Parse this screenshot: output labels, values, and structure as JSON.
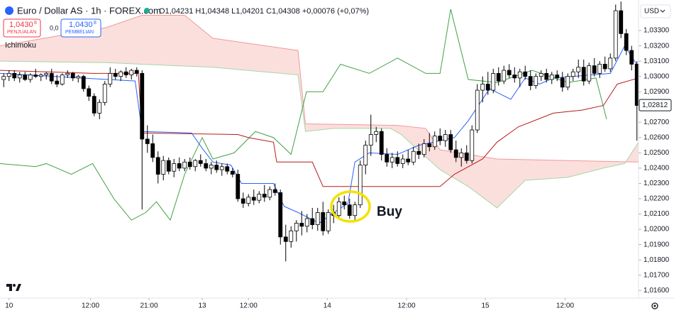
{
  "header": {
    "symbol": "Euro / Dollar AS · 1h · FOREX.com",
    "ohlc": "O1,04231 H1,04348 L1,04201 C1,04308 +0,00076 (+0,07%)",
    "sell": {
      "price": "1,0430",
      "pip": "8",
      "label": "PENJUALAN"
    },
    "spread": "0,0",
    "buy": {
      "price": "1,0430",
      "pip": "8",
      "label": "PEMBELIAN"
    },
    "indicator": "Ichimoku",
    "currency": "USD"
  },
  "chart_data": {
    "type": "candlestick",
    "up_color": "#ffffff",
    "down_color": "#000000",
    "wick_color": "#000000",
    "xlim": [
      -0.7,
      119.3
    ],
    "ylim": [
      1.0155,
      1.035
    ],
    "xticks": [
      {
        "value": 1,
        "label": "10"
      },
      {
        "value": 16.3,
        "label": "12:00"
      },
      {
        "value": 27.3,
        "label": "21:00"
      },
      {
        "value": 37.3,
        "label": "13"
      },
      {
        "value": 46,
        "label": "12:00"
      },
      {
        "value": 60.8,
        "label": "14"
      },
      {
        "value": 75.7,
        "label": "12:00"
      },
      {
        "value": 90.5,
        "label": "15"
      },
      {
        "value": 105.5,
        "label": "12:00"
      }
    ],
    "yticks": [
      {
        "value": 1.016,
        "label": "1,01600"
      },
      {
        "value": 1.017,
        "label": "1,01700"
      },
      {
        "value": 1.018,
        "label": "1,01800"
      },
      {
        "value": 1.019,
        "label": "1,01900"
      },
      {
        "value": 1.02,
        "label": "1,02000"
      },
      {
        "value": 1.021,
        "label": "1,02100"
      },
      {
        "value": 1.022,
        "label": "1,02200"
      },
      {
        "value": 1.023,
        "label": "1,02300"
      },
      {
        "value": 1.024,
        "label": "1,02400"
      },
      {
        "value": 1.025,
        "label": "1,02500"
      },
      {
        "value": 1.026,
        "label": "1,02600"
      },
      {
        "value": 1.027,
        "label": "1,02700"
      },
      {
        "value": 1.029,
        "label": "1,02900"
      },
      {
        "value": 1.03,
        "label": "1,03000"
      },
      {
        "value": 1.031,
        "label": "1,03100"
      },
      {
        "value": 1.032,
        "label": "1,03200"
      },
      {
        "value": 1.033,
        "label": "1,03300"
      }
    ],
    "grid": false,
    "last_price": {
      "value": 1.02812,
      "label": "1,02812"
    },
    "annotation": "Buy",
    "open": [
      1.0298,
      1.03,
      1.0302,
      1.0299,
      1.0301,
      1.0298,
      1.0301,
      1.03,
      1.0301,
      1.0302,
      1.0297,
      1.0295,
      1.0301,
      1.0302,
      1.0299,
      1.03,
      1.0292,
      1.0287,
      1.0276,
      1.0283,
      1.0295,
      1.0302,
      1.03,
      1.0303,
      1.0301,
      1.0304,
      1.0302,
      1.0259,
      1.0256,
      1.0247,
      1.0236,
      1.0245,
      1.0238,
      1.0243,
      1.024,
      1.0244,
      1.0241,
      1.0245,
      1.0243,
      1.024,
      1.0242,
      1.0239,
      1.0241,
      1.0238,
      1.0236,
      1.022,
      1.0217,
      1.0221,
      1.0219,
      1.0223,
      1.0221,
      1.0226,
      1.0224,
      1.0195,
      1.0192,
      1.0199,
      1.0204,
      1.0202,
      1.0207,
      1.0203,
      1.0211,
      1.0199,
      1.0211,
      1.0209,
      1.0218,
      1.0216,
      1.0209,
      1.0216,
      1.0242,
      1.0255,
      1.0262,
      1.0264,
      1.0249,
      1.0244,
      1.0247,
      1.0243,
      1.0246,
      1.0244,
      1.0251,
      1.0249,
      1.0256,
      1.0254,
      1.0261,
      1.0258,
      1.0262,
      1.0252,
      1.0247,
      1.025,
      1.0245,
      1.0265,
      1.0291,
      1.0295,
      1.0291,
      1.0302,
      1.0297,
      1.0304,
      1.0301,
      1.0299,
      1.0303,
      1.03,
      1.0294,
      1.03,
      1.0302,
      1.0298,
      1.0301,
      1.0299,
      1.0293,
      1.03,
      1.0303,
      1.0306,
      1.0297,
      1.0307,
      1.0302,
      1.0308,
      1.0305,
      1.0312,
      1.0343,
      1.0328,
      1.0317,
      1.0308
    ],
    "high": [
      1.0302,
      1.0304,
      1.0304,
      1.0303,
      1.0303,
      1.0302,
      1.0305,
      1.0302,
      1.0303,
      1.0305,
      1.0301,
      1.0302,
      1.0304,
      1.0303,
      1.0301,
      1.0301,
      1.0294,
      1.0289,
      1.0285,
      1.0297,
      1.0306,
      1.0305,
      1.0304,
      1.0306,
      1.0305,
      1.0306,
      1.0304,
      1.0268,
      1.0262,
      1.0251,
      1.0248,
      1.0247,
      1.0246,
      1.0247,
      1.0246,
      1.0247,
      1.0246,
      1.0249,
      1.0246,
      1.0244,
      1.0245,
      1.0243,
      1.0243,
      1.024,
      1.0239,
      1.0224,
      1.0223,
      1.0226,
      1.0225,
      1.0229,
      1.0228,
      1.023,
      1.0226,
      1.0203,
      1.0202,
      1.0206,
      1.0212,
      1.021,
      1.0214,
      1.0214,
      1.0218,
      1.0213,
      1.0216,
      1.0221,
      1.0222,
      1.022,
      1.0218,
      1.0245,
      1.0258,
      1.0275,
      1.0267,
      1.0266,
      1.0253,
      1.025,
      1.0251,
      1.0249,
      1.0252,
      1.0254,
      1.0256,
      1.0259,
      1.0263,
      1.0264,
      1.0266,
      1.0265,
      1.0265,
      1.0258,
      1.0253,
      1.0255,
      1.0268,
      1.0295,
      1.03,
      1.0303,
      1.0305,
      1.0306,
      1.0307,
      1.0308,
      1.0306,
      1.0305,
      1.0307,
      1.0304,
      1.0302,
      1.0304,
      1.0305,
      1.0303,
      1.0304,
      1.0303,
      1.0302,
      1.0305,
      1.0311,
      1.0311,
      1.0309,
      1.0312,
      1.031,
      1.0313,
      1.0315,
      1.0347,
      1.0349,
      1.0331,
      1.032,
      1.031
    ],
    "low": [
      1.0293,
      1.0297,
      1.0297,
      1.0296,
      1.0297,
      1.0296,
      1.0299,
      1.0297,
      1.0298,
      1.0295,
      1.0293,
      1.0294,
      1.0299,
      1.0297,
      1.0296,
      1.029,
      1.0284,
      1.0274,
      1.0272,
      1.0281,
      1.0293,
      1.0298,
      1.0297,
      1.0299,
      1.0298,
      1.03,
      1.0213,
      1.025,
      1.0244,
      1.023,
      1.0232,
      1.0236,
      1.0234,
      1.0238,
      1.0238,
      1.0239,
      1.0238,
      1.0241,
      1.0238,
      1.0236,
      1.0237,
      1.0235,
      1.0236,
      1.0234,
      1.0218,
      1.0214,
      1.0215,
      1.0216,
      1.0217,
      1.0218,
      1.0219,
      1.0222,
      1.019,
      1.0179,
      1.0188,
      1.0192,
      1.0196,
      1.0198,
      1.02,
      1.0199,
      1.0196,
      1.0197,
      1.0204,
      1.0207,
      1.0213,
      1.0207,
      1.0206,
      1.0214,
      1.0236,
      1.0248,
      1.0257,
      1.0245,
      1.0241,
      1.024,
      1.0241,
      1.024,
      1.0242,
      1.0242,
      1.0246,
      1.0247,
      1.0251,
      1.0252,
      1.0255,
      1.0254,
      1.025,
      1.0244,
      1.0241,
      1.0243,
      1.0243,
      1.0263,
      1.0283,
      1.0288,
      1.0289,
      1.0294,
      1.0295,
      1.0299,
      1.0296,
      1.0293,
      1.0298,
      1.0291,
      1.0292,
      1.0297,
      1.0296,
      1.0295,
      1.0297,
      1.029,
      1.0291,
      1.0297,
      1.0299,
      1.0294,
      1.0295,
      1.03,
      1.0299,
      1.0303,
      1.0303,
      1.031,
      1.0325,
      1.0314,
      1.0304,
      1.0258
    ],
    "close": [
      1.03,
      1.0302,
      1.0299,
      1.0301,
      1.0298,
      1.0301,
      1.03,
      1.0301,
      1.0302,
      1.0297,
      1.0295,
      1.0301,
      1.0302,
      1.0299,
      1.03,
      1.0292,
      1.0287,
      1.0276,
      1.0283,
      1.0295,
      1.0302,
      1.03,
      1.0303,
      1.0301,
      1.0304,
      1.0302,
      1.0259,
      1.0256,
      1.0247,
      1.0236,
      1.0245,
      1.0238,
      1.0243,
      1.024,
      1.0244,
      1.0241,
      1.0245,
      1.0243,
      1.024,
      1.0242,
      1.0239,
      1.0241,
      1.0238,
      1.0236,
      1.022,
      1.0217,
      1.0221,
      1.0219,
      1.0223,
      1.0221,
      1.0226,
      1.0224,
      1.0195,
      1.0192,
      1.0199,
      1.0204,
      1.0202,
      1.0207,
      1.0203,
      1.0211,
      1.0199,
      1.0211,
      1.0209,
      1.0218,
      1.0216,
      1.0209,
      1.0216,
      1.0242,
      1.0255,
      1.0262,
      1.0264,
      1.0249,
      1.0244,
      1.0247,
      1.0243,
      1.0246,
      1.0244,
      1.0251,
      1.0249,
      1.0256,
      1.0254,
      1.0261,
      1.0258,
      1.0262,
      1.0252,
      1.0247,
      1.025,
      1.0245,
      1.0265,
      1.0291,
      1.0295,
      1.0291,
      1.0302,
      1.0297,
      1.0304,
      1.0301,
      1.0299,
      1.0303,
      1.03,
      1.0294,
      1.03,
      1.0302,
      1.0298,
      1.0301,
      1.0299,
      1.0293,
      1.03,
      1.0303,
      1.0306,
      1.0297,
      1.0307,
      1.0302,
      1.0308,
      1.0305,
      1.0312,
      1.0343,
      1.0328,
      1.0317,
      1.0308,
      1.0281
    ],
    "cloud_color": "#f8c9c6",
    "lines": [
      {
        "color": "#a5d6a7",
        "x": [
          -0.7,
          19.3,
          26,
          39.3,
          55.3,
          56.7,
          62,
          72.7,
          74.7,
          82,
          87.3,
          92.7,
          98,
          106,
          112.7,
          116.7,
          119.3
        ],
        "values": [
          1.031,
          1.0309,
          1.0308,
          1.0306,
          1.0301,
          1.0264,
          1.0266,
          1.0266,
          1.0262,
          1.0239,
          1.0228,
          1.0214,
          1.0232,
          1.0234,
          1.024,
          1.0243,
          1.0257
        ]
      },
      {
        "color": "#ef9a9a",
        "x": [
          -0.7,
          19.3,
          26,
          34,
          39.3,
          55.3,
          56.7,
          74,
          79.3,
          82,
          92.7,
          119.3
        ],
        "values": [
          1.032,
          1.0332,
          1.034,
          1.034,
          1.0325,
          1.0317,
          1.0269,
          1.0268,
          1.0266,
          1.0252,
          1.0246,
          1.0244
        ]
      },
      {
        "color": "#43a047",
        "x": [
          -0.7,
          6,
          8,
          12.7,
          16.7,
          20.7,
          24,
          26.7,
          28.7,
          31.3,
          34,
          37.3,
          39.3,
          43.3,
          47.3,
          50.7,
          54,
          56.9,
          60,
          63.3,
          68.7,
          74,
          79.3,
          82,
          84,
          87.3,
          92.7,
          99.3,
          106,
          111.3,
          113.3
        ],
        "values": [
          1.0243,
          1.0241,
          1.0243,
          1.0236,
          1.0243,
          1.022,
          1.0206,
          1.0211,
          1.0218,
          1.0206,
          1.0236,
          1.026,
          1.0246,
          1.025,
          1.0264,
          1.026,
          1.0249,
          1.029,
          1.029,
          1.0308,
          1.0302,
          1.0312,
          1.0302,
          1.0302,
          1.0344,
          1.0298,
          1.0296,
          1.0304,
          1.0296,
          1.0299,
          1.0272
        ]
      },
      {
        "color": "#b71c1c",
        "x": [
          -0.7,
          16.7,
          25.3,
          26,
          44,
          46,
          50.7,
          51.3,
          58,
          60,
          82,
          84.7,
          90,
          92.7,
          96.7,
          103.3,
          108.7,
          112.7,
          115.3,
          119.3
        ],
        "values": [
          1.0304,
          1.0302,
          1.0302,
          1.0263,
          1.0262,
          1.026,
          1.0257,
          1.0244,
          1.0244,
          1.0228,
          1.0228,
          1.0236,
          1.0246,
          1.0257,
          1.0267,
          1.0276,
          1.0278,
          1.0281,
          1.0295,
          1.0299
        ]
      },
      {
        "color": "#2962ff",
        "x": [
          -0.7,
          24.7,
          26,
          35.3,
          37.3,
          39.3,
          42.7,
          44.7,
          50.7,
          52.7,
          55.3,
          59.3,
          62,
          64.7,
          66,
          68.7,
          74,
          78,
          84.7,
          87.3,
          91.3,
          95.3,
          98,
          100.7,
          103.3,
          114,
          116.7,
          119.3
        ],
        "values": [
          1.0302,
          1.0297,
          1.0264,
          1.0263,
          1.0253,
          1.0244,
          1.0242,
          1.023,
          1.023,
          1.0215,
          1.0211,
          1.0204,
          1.0211,
          1.0217,
          1.0244,
          1.025,
          1.0249,
          1.0255,
          1.026,
          1.0271,
          1.0292,
          1.0285,
          1.0299,
          1.0295,
          1.0299,
          1.0302,
          1.032,
          1.0306
        ]
      }
    ]
  }
}
